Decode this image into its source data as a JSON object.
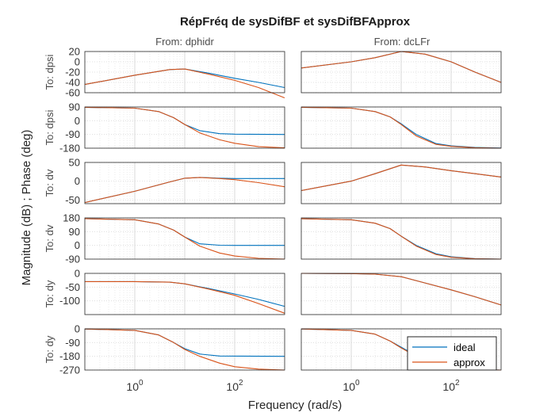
{
  "chart_data": {
    "type": "line",
    "title": "RépFréq de sysDifBF et sysDifBFApprox",
    "xlabel": "Frequency  (rad/s)",
    "ylabel": "Magnitude (dB) ; Phase (deg)",
    "xscale": "log",
    "xlim": [
      0.1,
      1000
    ],
    "x_ticks": [
      {
        "base": "10",
        "exp": "0"
      },
      {
        "base": "10",
        "exp": "2"
      }
    ],
    "grid": true,
    "columns": [
      "From: dphidr",
      "From: dcLFr"
    ],
    "rows": [
      {
        "label": "To: dpsi",
        "kind": "magnitude",
        "ylim": [
          -60,
          20
        ],
        "yticks": [
          20,
          0,
          -20,
          -40,
          -60
        ]
      },
      {
        "label": "To: dpsi",
        "kind": "phase",
        "ylim": [
          -180,
          90
        ],
        "yticks": [
          90,
          0,
          -90,
          -180
        ]
      },
      {
        "label": "To: dv",
        "kind": "magnitude",
        "ylim": [
          -60,
          50
        ],
        "yticks": [
          50,
          0,
          -50
        ]
      },
      {
        "label": "To: dv",
        "kind": "phase",
        "ylim": [
          -90,
          180
        ],
        "yticks": [
          180,
          90,
          0,
          -90
        ]
      },
      {
        "label": "To: dy",
        "kind": "magnitude",
        "ylim": [
          -150,
          0
        ],
        "yticks": [
          0,
          -50,
          -100
        ]
      },
      {
        "label": "To: dy",
        "kind": "phase",
        "ylim": [
          -270,
          0
        ],
        "yticks": [
          0,
          -90,
          -180,
          -270
        ]
      }
    ],
    "series": [
      {
        "name": "ideal",
        "color": "#0072BD"
      },
      {
        "name": "approx",
        "color": "#D95319"
      }
    ],
    "legend_position": "bottom-right",
    "panels": [
      {
        "row": 0,
        "col": 0,
        "ideal": [
          [
            0.1,
            -44
          ],
          [
            1,
            -26
          ],
          [
            5,
            -15
          ],
          [
            10,
            -14
          ],
          [
            30,
            -22
          ],
          [
            100,
            -32
          ],
          [
            300,
            -40
          ],
          [
            1000,
            -50
          ]
        ],
        "approx": [
          [
            0.1,
            -44
          ],
          [
            1,
            -26
          ],
          [
            5,
            -15
          ],
          [
            10,
            -14
          ],
          [
            30,
            -24
          ],
          [
            100,
            -36
          ],
          [
            300,
            -50
          ],
          [
            1000,
            -70
          ]
        ]
      },
      {
        "row": 0,
        "col": 1,
        "ideal": [
          [
            0.1,
            -12
          ],
          [
            1,
            0
          ],
          [
            3,
            8
          ],
          [
            10,
            20
          ],
          [
            30,
            15
          ],
          [
            100,
            0
          ],
          [
            300,
            -20
          ],
          [
            1000,
            -40
          ]
        ],
        "approx": [
          [
            0.1,
            -12
          ],
          [
            1,
            0
          ],
          [
            3,
            8
          ],
          [
            10,
            20
          ],
          [
            30,
            15
          ],
          [
            100,
            0
          ],
          [
            300,
            -20
          ],
          [
            1000,
            -40
          ]
        ]
      },
      {
        "row": 1,
        "col": 0,
        "ideal": [
          [
            0.1,
            88
          ],
          [
            1,
            82
          ],
          [
            3,
            60
          ],
          [
            6,
            20
          ],
          [
            10,
            -25
          ],
          [
            20,
            -65
          ],
          [
            50,
            -85
          ],
          [
            100,
            -88
          ],
          [
            1000,
            -90
          ]
        ],
        "approx": [
          [
            0.1,
            88
          ],
          [
            1,
            82
          ],
          [
            3,
            60
          ],
          [
            6,
            20
          ],
          [
            10,
            -25
          ],
          [
            20,
            -80
          ],
          [
            50,
            -125
          ],
          [
            100,
            -148
          ],
          [
            300,
            -170
          ],
          [
            1000,
            -178
          ]
        ]
      },
      {
        "row": 1,
        "col": 1,
        "ideal": [
          [
            0.1,
            88
          ],
          [
            1,
            82
          ],
          [
            3,
            60
          ],
          [
            6,
            25
          ],
          [
            10,
            -20
          ],
          [
            20,
            -90
          ],
          [
            50,
            -150
          ],
          [
            100,
            -165
          ],
          [
            300,
            -175
          ],
          [
            1000,
            -179
          ]
        ],
        "approx": [
          [
            0.1,
            88
          ],
          [
            1,
            82
          ],
          [
            3,
            60
          ],
          [
            6,
            25
          ],
          [
            10,
            -25
          ],
          [
            20,
            -100
          ],
          [
            50,
            -155
          ],
          [
            100,
            -168
          ],
          [
            300,
            -177
          ],
          [
            1000,
            -180
          ]
        ]
      },
      {
        "row": 2,
        "col": 0,
        "ideal": [
          [
            0.1,
            -57
          ],
          [
            1,
            -27
          ],
          [
            5,
            -2
          ],
          [
            10,
            8
          ],
          [
            20,
            10
          ],
          [
            50,
            8
          ],
          [
            100,
            7
          ],
          [
            1000,
            7
          ]
        ],
        "approx": [
          [
            0.1,
            -57
          ],
          [
            1,
            -27
          ],
          [
            5,
            -2
          ],
          [
            10,
            8
          ],
          [
            20,
            10
          ],
          [
            50,
            7
          ],
          [
            100,
            4
          ],
          [
            300,
            -4
          ],
          [
            1000,
            -15
          ]
        ]
      },
      {
        "row": 2,
        "col": 1,
        "ideal": [
          [
            0.1,
            -25
          ],
          [
            1,
            0
          ],
          [
            3,
            20
          ],
          [
            10,
            43
          ],
          [
            30,
            38
          ],
          [
            100,
            28
          ],
          [
            300,
            20
          ],
          [
            1000,
            11
          ]
        ],
        "approx": [
          [
            0.1,
            -25
          ],
          [
            1,
            0
          ],
          [
            3,
            20
          ],
          [
            10,
            43
          ],
          [
            30,
            38
          ],
          [
            100,
            28
          ],
          [
            300,
            20
          ],
          [
            1000,
            11
          ]
        ]
      },
      {
        "row": 3,
        "col": 0,
        "ideal": [
          [
            0.1,
            175
          ],
          [
            1,
            168
          ],
          [
            3,
            140
          ],
          [
            6,
            100
          ],
          [
            10,
            55
          ],
          [
            20,
            10
          ],
          [
            50,
            1
          ],
          [
            100,
            0
          ],
          [
            1000,
            0
          ]
        ],
        "approx": [
          [
            0.1,
            175
          ],
          [
            1,
            168
          ],
          [
            3,
            140
          ],
          [
            6,
            100
          ],
          [
            10,
            55
          ],
          [
            20,
            -5
          ],
          [
            50,
            -50
          ],
          [
            100,
            -70
          ],
          [
            300,
            -85
          ],
          [
            1000,
            -90
          ]
        ]
      },
      {
        "row": 3,
        "col": 1,
        "ideal": [
          [
            0.1,
            175
          ],
          [
            1,
            168
          ],
          [
            3,
            145
          ],
          [
            6,
            110
          ],
          [
            10,
            60
          ],
          [
            20,
            0
          ],
          [
            50,
            -55
          ],
          [
            100,
            -75
          ],
          [
            300,
            -87
          ],
          [
            1000,
            -90
          ]
        ],
        "approx": [
          [
            0.1,
            175
          ],
          [
            1,
            168
          ],
          [
            3,
            145
          ],
          [
            6,
            110
          ],
          [
            10,
            60
          ],
          [
            20,
            -5
          ],
          [
            50,
            -60
          ],
          [
            100,
            -78
          ],
          [
            300,
            -88
          ],
          [
            1000,
            -90
          ]
        ]
      },
      {
        "row": 4,
        "col": 0,
        "ideal": [
          [
            0.1,
            -30
          ],
          [
            1,
            -30
          ],
          [
            5,
            -32
          ],
          [
            10,
            -38
          ],
          [
            30,
            -55
          ],
          [
            100,
            -75
          ],
          [
            300,
            -95
          ],
          [
            1000,
            -120
          ]
        ],
        "approx": [
          [
            0.1,
            -30
          ],
          [
            1,
            -30
          ],
          [
            5,
            -32
          ],
          [
            10,
            -38
          ],
          [
            30,
            -57
          ],
          [
            100,
            -80
          ],
          [
            300,
            -110
          ],
          [
            1000,
            -145
          ]
        ]
      },
      {
        "row": 4,
        "col": 1,
        "ideal": [
          [
            0.1,
            0
          ],
          [
            1,
            -1
          ],
          [
            3,
            -3
          ],
          [
            10,
            -12
          ],
          [
            30,
            -35
          ],
          [
            100,
            -60
          ],
          [
            300,
            -85
          ],
          [
            1000,
            -115
          ]
        ],
        "approx": [
          [
            0.1,
            0
          ],
          [
            1,
            -1
          ],
          [
            3,
            -3
          ],
          [
            10,
            -12
          ],
          [
            30,
            -35
          ],
          [
            100,
            -60
          ],
          [
            300,
            -85
          ],
          [
            1000,
            -115
          ]
        ]
      },
      {
        "row": 5,
        "col": 0,
        "ideal": [
          [
            0.1,
            -1
          ],
          [
            1,
            -10
          ],
          [
            3,
            -40
          ],
          [
            6,
            -90
          ],
          [
            10,
            -130
          ],
          [
            20,
            -165
          ],
          [
            50,
            -178
          ],
          [
            1000,
            -180
          ]
        ],
        "approx": [
          [
            0.1,
            -1
          ],
          [
            1,
            -10
          ],
          [
            3,
            -40
          ],
          [
            6,
            -90
          ],
          [
            10,
            -135
          ],
          [
            20,
            -180
          ],
          [
            50,
            -225
          ],
          [
            100,
            -248
          ],
          [
            300,
            -264
          ],
          [
            1000,
            -270
          ]
        ]
      },
      {
        "row": 5,
        "col": 1,
        "ideal": [
          [
            0.1,
            -1
          ],
          [
            1,
            -10
          ],
          [
            3,
            -35
          ],
          [
            6,
            -80
          ],
          [
            10,
            -120
          ],
          [
            20,
            -175
          ],
          [
            50,
            -230
          ],
          [
            100,
            -255
          ],
          [
            300,
            -265
          ],
          [
            1000,
            -270
          ]
        ],
        "approx": [
          [
            0.1,
            -1
          ],
          [
            1,
            -10
          ],
          [
            3,
            -35
          ],
          [
            6,
            -80
          ],
          [
            10,
            -125
          ],
          [
            20,
            -180
          ],
          [
            50,
            -235
          ],
          [
            100,
            -258
          ],
          [
            300,
            -267
          ],
          [
            1000,
            -270
          ]
        ]
      }
    ]
  }
}
